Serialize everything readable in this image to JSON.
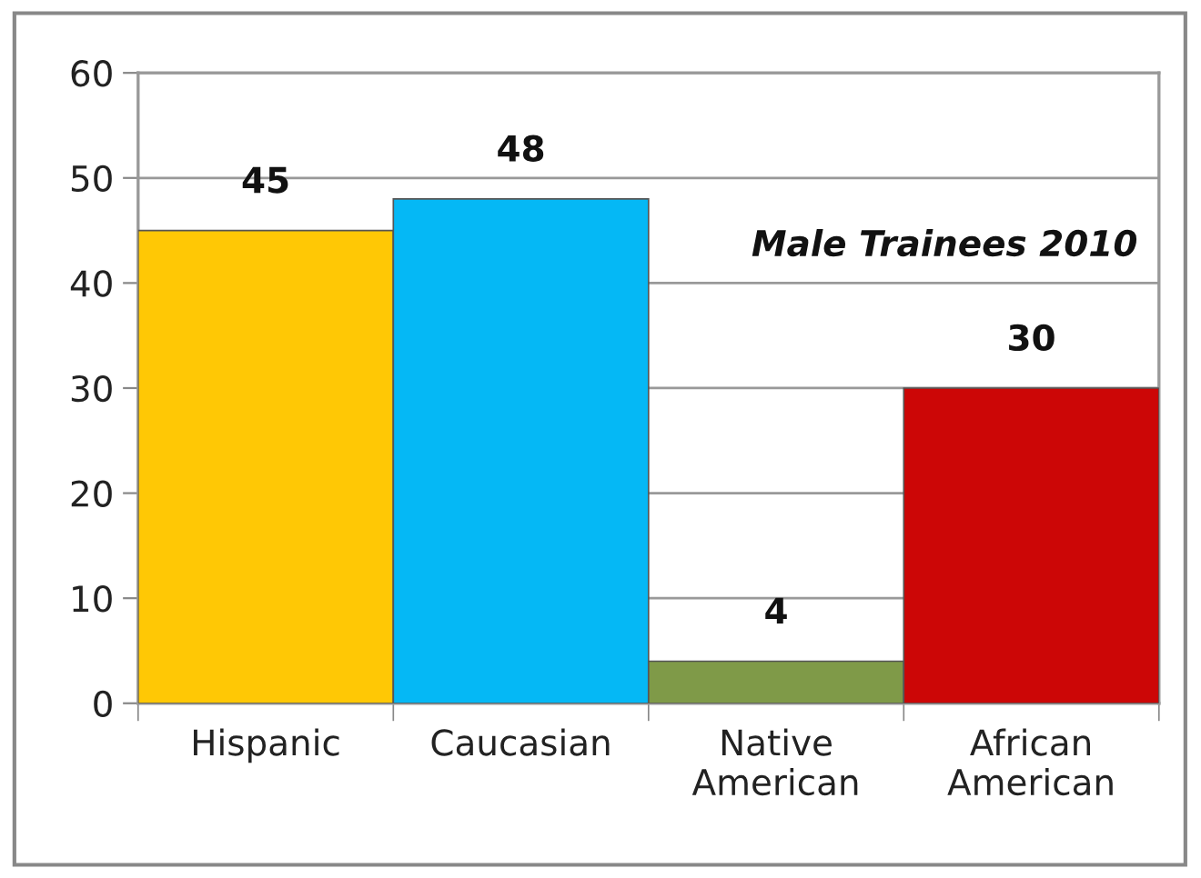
{
  "chart_data": {
    "type": "bar",
    "title": "Male Trainees 2010",
    "categories": [
      "Hispanic",
      "Caucasian",
      "Native American",
      "African American"
    ],
    "values": [
      45,
      48,
      4,
      30
    ],
    "colors": [
      "#ffc805",
      "#05b8f5",
      "#7f9a48",
      "#cc0606"
    ],
    "ylim": [
      0,
      60
    ],
    "yticks": [
      0,
      10,
      20,
      30,
      40,
      50,
      60
    ],
    "grid": "y",
    "data_labels": true,
    "legend": false
  }
}
